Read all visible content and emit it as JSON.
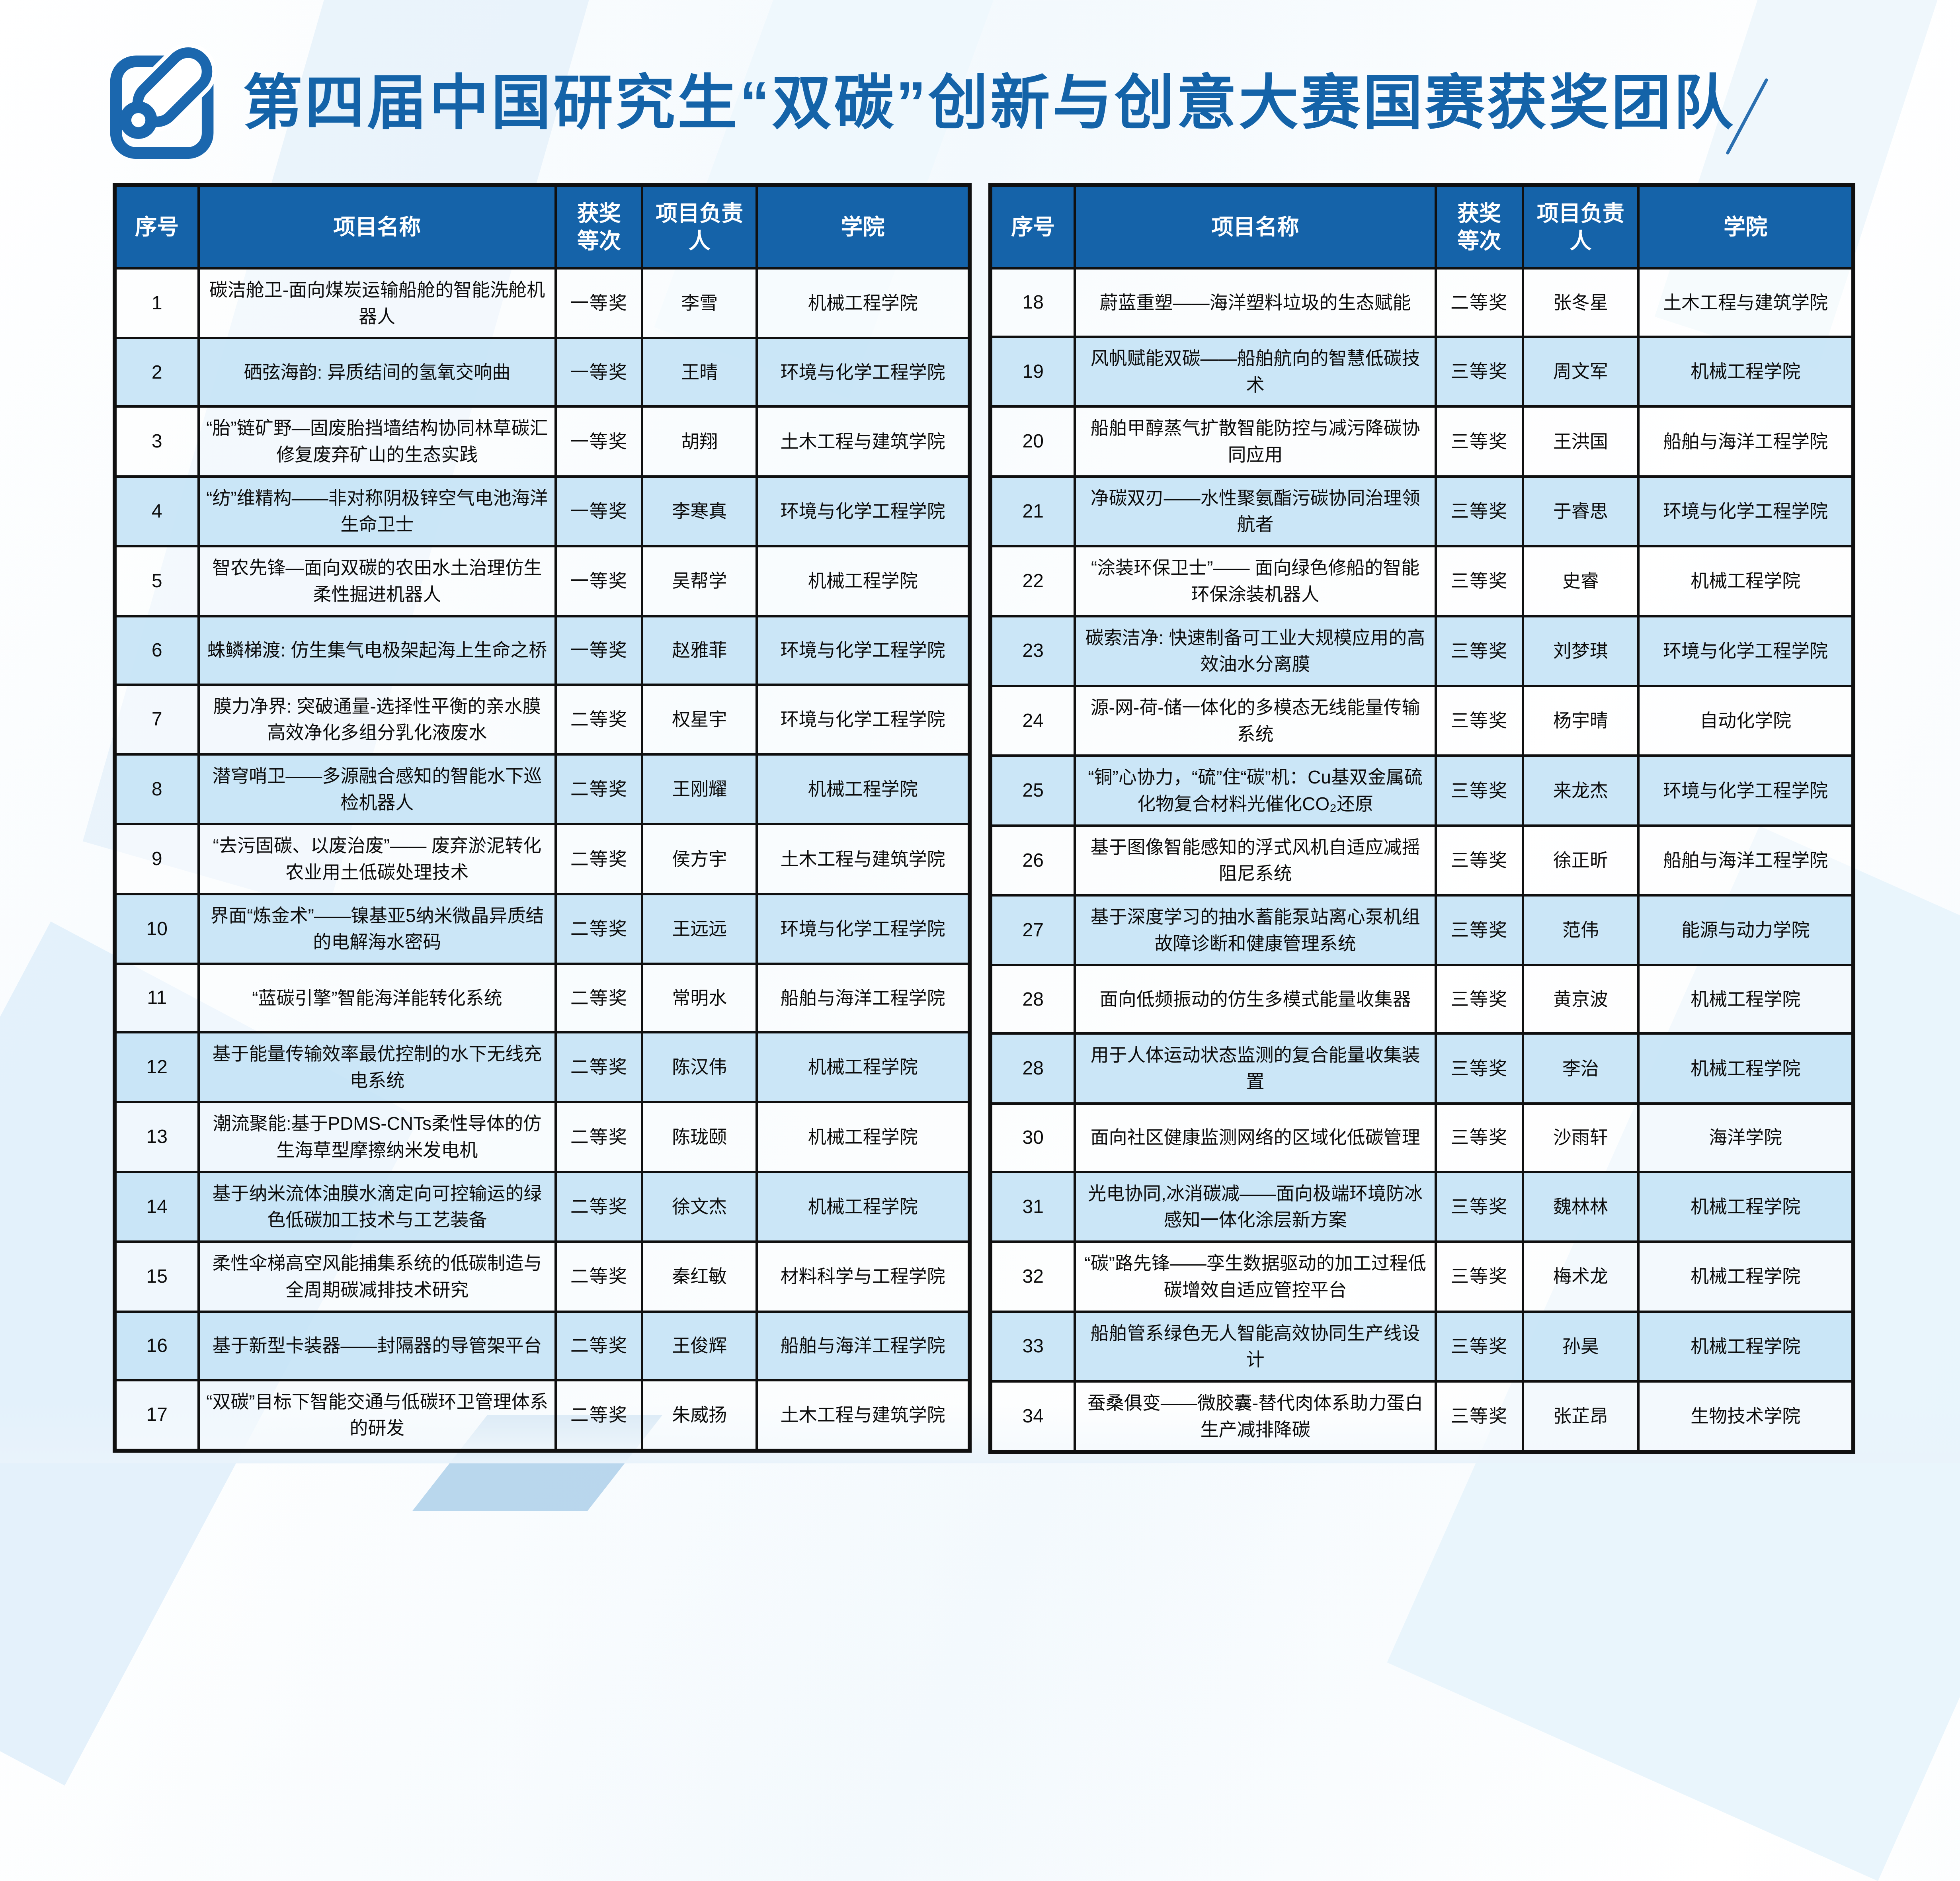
{
  "header": {
    "title": "第四届中国研究生“双碳”创新与创意大赛国赛获奖团队",
    "icon": "edit-pencil-icon",
    "accent_color": "#1463a8"
  },
  "table": {
    "header_bg": "#1563a9",
    "row_alt_color": "#c7e4f6",
    "headers": [
      "序号",
      "项目名称",
      "获奖等次",
      "项目负责人",
      "学院"
    ],
    "left_rows": [
      {
        "no": "1",
        "name": "碳洁舱卫-面向煤炭运输船舱的智能洗舱机器人",
        "award": "一等奖",
        "leader": "李雪",
        "college": "机械工程学院"
      },
      {
        "no": "2",
        "name": "硒弦海韵: 异质结间的氢氧交响曲",
        "award": "一等奖",
        "leader": "王晴",
        "college": "环境与化学工程学院"
      },
      {
        "no": "3",
        "name": "“胎”链矿野—固废胎挡墙结构协同林草碳汇修复废弃矿山的生态实践",
        "award": "一等奖",
        "leader": "胡翔",
        "college": "土木工程与建筑学院"
      },
      {
        "no": "4",
        "name": "“纺”维精构——非对称阴极锌空气电池海洋生命卫士",
        "award": "一等奖",
        "leader": "李寒真",
        "college": "环境与化学工程学院"
      },
      {
        "no": "5",
        "name": "智农先锋—面向双碳的农田水土治理仿生柔性掘进机器人",
        "award": "一等奖",
        "leader": "吴帮学",
        "college": "机械工程学院"
      },
      {
        "no": "6",
        "name": "蛛鳞梯渡: 仿生集气电极架起海上生命之桥",
        "award": "一等奖",
        "leader": "赵雅菲",
        "college": "环境与化学工程学院"
      },
      {
        "no": "7",
        "name": "膜力净界: 突破通量-选择性平衡的亲水膜高效净化多组分乳化液废水",
        "award": "二等奖",
        "leader": "权星宇",
        "college": "环境与化学工程学院"
      },
      {
        "no": "8",
        "name": "潜穹哨卫——多源融合感知的智能水下巡检机器人",
        "award": "二等奖",
        "leader": "王刚耀",
        "college": "机械工程学院"
      },
      {
        "no": "9",
        "name": "“去污固碳、以废治废”—— 废弃淤泥转化农业用土低碳处理技术",
        "award": "二等奖",
        "leader": "侯方宇",
        "college": "土木工程与建筑学院"
      },
      {
        "no": "10",
        "name": "界面“炼金术”——镍基亚5纳米微晶异质结的电解海水密码",
        "award": "二等奖",
        "leader": "王远远",
        "college": "环境与化学工程学院"
      },
      {
        "no": "11",
        "name": "“蓝碳引擎”智能海洋能转化系统",
        "award": "二等奖",
        "leader": "常明水",
        "college": "船舶与海洋工程学院"
      },
      {
        "no": "12",
        "name": "基于能量传输效率最优控制的水下无线充电系统",
        "award": "二等奖",
        "leader": "陈汉伟",
        "college": "机械工程学院"
      },
      {
        "no": "13",
        "name": "潮流聚能:基于PDMS-CNTs柔性导体的仿生海草型摩擦纳米发电机",
        "award": "二等奖",
        "leader": "陈珑颐",
        "college": "机械工程学院"
      },
      {
        "no": "14",
        "name": "基于纳米流体油膜水滴定向可控输运的绿色低碳加工技术与工艺装备",
        "award": "二等奖",
        "leader": "徐文杰",
        "college": "机械工程学院"
      },
      {
        "no": "15",
        "name": "柔性伞梯高空风能捕集系统的低碳制造与全周期碳减排技术研究",
        "award": "二等奖",
        "leader": "秦红敏",
        "college": "材料科学与工程学院"
      },
      {
        "no": "16",
        "name": "基于新型卡装器——封隔器的导管架平台",
        "award": "二等奖",
        "leader": "王俊辉",
        "college": "船舶与海洋工程学院"
      },
      {
        "no": "17",
        "name": "“双碳”目标下智能交通与低碳环卫管理体系的研发",
        "award": "二等奖",
        "leader": "朱威扬",
        "college": "土木工程与建筑学院"
      }
    ],
    "right_rows": [
      {
        "no": "18",
        "name": "蔚蓝重塑——海洋塑料垃圾的生态赋能",
        "award": "二等奖",
        "leader": "张冬星",
        "college": "土木工程与建筑学院"
      },
      {
        "no": "19",
        "name": "风帆赋能双碳——船舶航向的智慧低碳技术",
        "award": "三等奖",
        "leader": "周文军",
        "college": "机械工程学院"
      },
      {
        "no": "20",
        "name": "船舶甲醇蒸气扩散智能防控与减污降碳协同应用",
        "award": "三等奖",
        "leader": "王洪国",
        "college": "船舶与海洋工程学院"
      },
      {
        "no": "21",
        "name": "净碳双刃——水性聚氨酯污碳协同治理领航者",
        "award": "三等奖",
        "leader": "于睿思",
        "college": "环境与化学工程学院"
      },
      {
        "no": "22",
        "name": "“涂装环保卫士”—— 面向绿色修船的智能环保涂装机器人",
        "award": "三等奖",
        "leader": "史睿",
        "college": "机械工程学院"
      },
      {
        "no": "23",
        "name": "碳索洁净: 快速制备可工业大规模应用的高效油水分离膜",
        "award": "三等奖",
        "leader": "刘梦琪",
        "college": "环境与化学工程学院"
      },
      {
        "no": "24",
        "name": "源-网-荷-储一体化的多模态无线能量传输系统",
        "award": "三等奖",
        "leader": "杨宇晴",
        "college": "自动化学院"
      },
      {
        "no": "25",
        "name": "“铜”心协力，“硫”住“碳”机：Cu基双金属硫化物复合材料光催化CO₂还原",
        "award": "三等奖",
        "leader": "来龙杰",
        "college": "环境与化学工程学院"
      },
      {
        "no": "26",
        "name": "基于图像智能感知的浮式风机自适应减摇阻尼系统",
        "award": "三等奖",
        "leader": "徐正昕",
        "college": "船舶与海洋工程学院"
      },
      {
        "no": "27",
        "name": "基于深度学习的抽水蓄能泵站离心泵机组故障诊断和健康管理系统",
        "award": "三等奖",
        "leader": "范伟",
        "college": "能源与动力学院"
      },
      {
        "no": "28",
        "name": "面向低频振动的仿生多模式能量收集器",
        "award": "三等奖",
        "leader": "黄京波",
        "college": "机械工程学院"
      },
      {
        "no": "28",
        "name": "用于人体运动状态监测的复合能量收集装置",
        "award": "三等奖",
        "leader": "李治",
        "college": "机械工程学院"
      },
      {
        "no": "30",
        "name": "面向社区健康监测网络的区域化低碳管理",
        "award": "三等奖",
        "leader": "沙雨轩",
        "college": "海洋学院"
      },
      {
        "no": "31",
        "name": "光电协同,冰消碳减——面向极端环境防冰感知一体化涂层新方案",
        "award": "三等奖",
        "leader": "魏林林",
        "college": "机械工程学院"
      },
      {
        "no": "32",
        "name": "“碳”路先锋——孪生数据驱动的加工过程低碳增效自适应管控平台",
        "award": "三等奖",
        "leader": "梅术龙",
        "college": "机械工程学院"
      },
      {
        "no": "33",
        "name": "船舶管系绿色无人智能高效协同生产线设计",
        "award": "三等奖",
        "leader": "孙昊",
        "college": "机械工程学院"
      },
      {
        "no": "34",
        "name": "蚕桑俱变——微胶囊-替代肉体系助力蛋白生产减排降碳",
        "award": "三等奖",
        "leader": "张芷昂",
        "college": "生物技术学院"
      }
    ]
  }
}
